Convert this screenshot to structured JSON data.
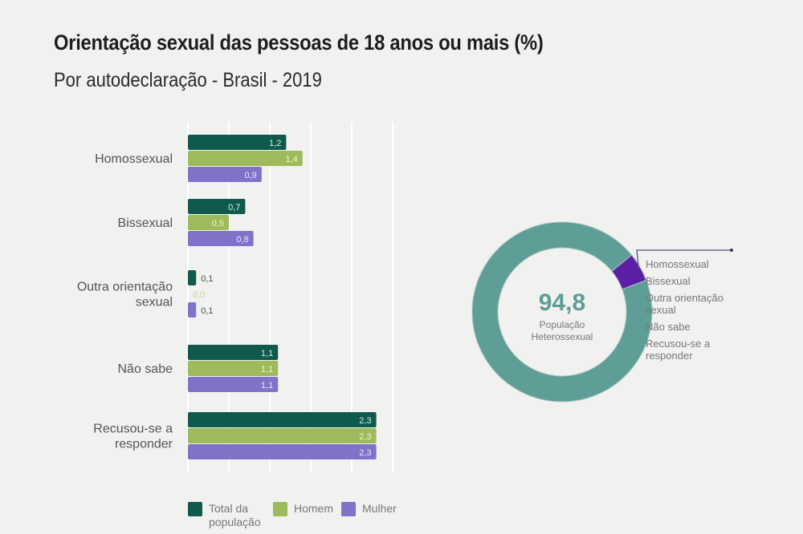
{
  "chart_data": [
    {
      "type": "bar",
      "orientation": "horizontal",
      "title": "Orientação sexual das pessoas de 18 anos ou mais (%)",
      "subtitle": "Por autodeclaração - Brasil - 2019",
      "categories": [
        "Homossexual",
        "Bissexual",
        "Outra orientação sexual",
        "Não sabe",
        "Recusou-se a responder"
      ],
      "category_lines": [
        [
          "Homossexual"
        ],
        [
          "Bissexual"
        ],
        [
          "Outra orientação",
          "sexual"
        ],
        [
          "Não sabe"
        ],
        [
          "Recusou-se a",
          "responder"
        ]
      ],
      "series": [
        {
          "name": "Total da população",
          "color": "#0f5a4d",
          "label_color": "#d9f0e8",
          "values": [
            1.2,
            0.7,
            0.1,
            1.1,
            2.3
          ],
          "labels": [
            "1,2",
            "0,7",
            "0,1",
            "1,1",
            "2,3"
          ]
        },
        {
          "name": "Homem",
          "color": "#9dbb5a",
          "label_color": "#f4f6c8",
          "values": [
            1.4,
            0.5,
            0.0,
            1.1,
            2.3
          ],
          "labels": [
            "1,4",
            "0,5",
            "0,0",
            "1,1",
            "2,3"
          ]
        },
        {
          "name": "Mulher",
          "color": "#7f72c9",
          "label_color": "#ebe8fb",
          "values": [
            0.9,
            0.8,
            0.1,
            1.1,
            2.3
          ],
          "labels": [
            "0,9",
            "0,8",
            "0,1",
            "1,1",
            "2,3"
          ]
        }
      ],
      "xlim": [
        0,
        2.5
      ],
      "grid_step": 0.5,
      "grid": true,
      "legend_position": "bottom"
    },
    {
      "type": "pie",
      "style": "donut",
      "slices": [
        {
          "name": "População Heterossexual",
          "value": 94.8,
          "color": "#5e9e96"
        },
        {
          "name": "Homossexual + Bissexual + Outra orientação sexual + Não sabe + Recusou-se a responder",
          "value": 5.2,
          "color": "#5b1fa6"
        }
      ],
      "center_value": "94,8",
      "center_label": [
        "População",
        "Heterossexual"
      ],
      "legend_entries": [
        [
          "Homossexual"
        ],
        [
          "Bissexual"
        ],
        [
          "Outra orientação",
          "sexual"
        ],
        [
          "Não sabe"
        ],
        [
          "Recusou-se a",
          "responder"
        ]
      ]
    }
  ],
  "header": {
    "title": "Orientação sexual das pessoas de 18 anos ou mais (%)",
    "subtitle": "Por autodeclaração - Brasil - 2019"
  },
  "legend": {
    "total": "Total da população",
    "homem": "Homem",
    "mulher": "Mulher"
  }
}
